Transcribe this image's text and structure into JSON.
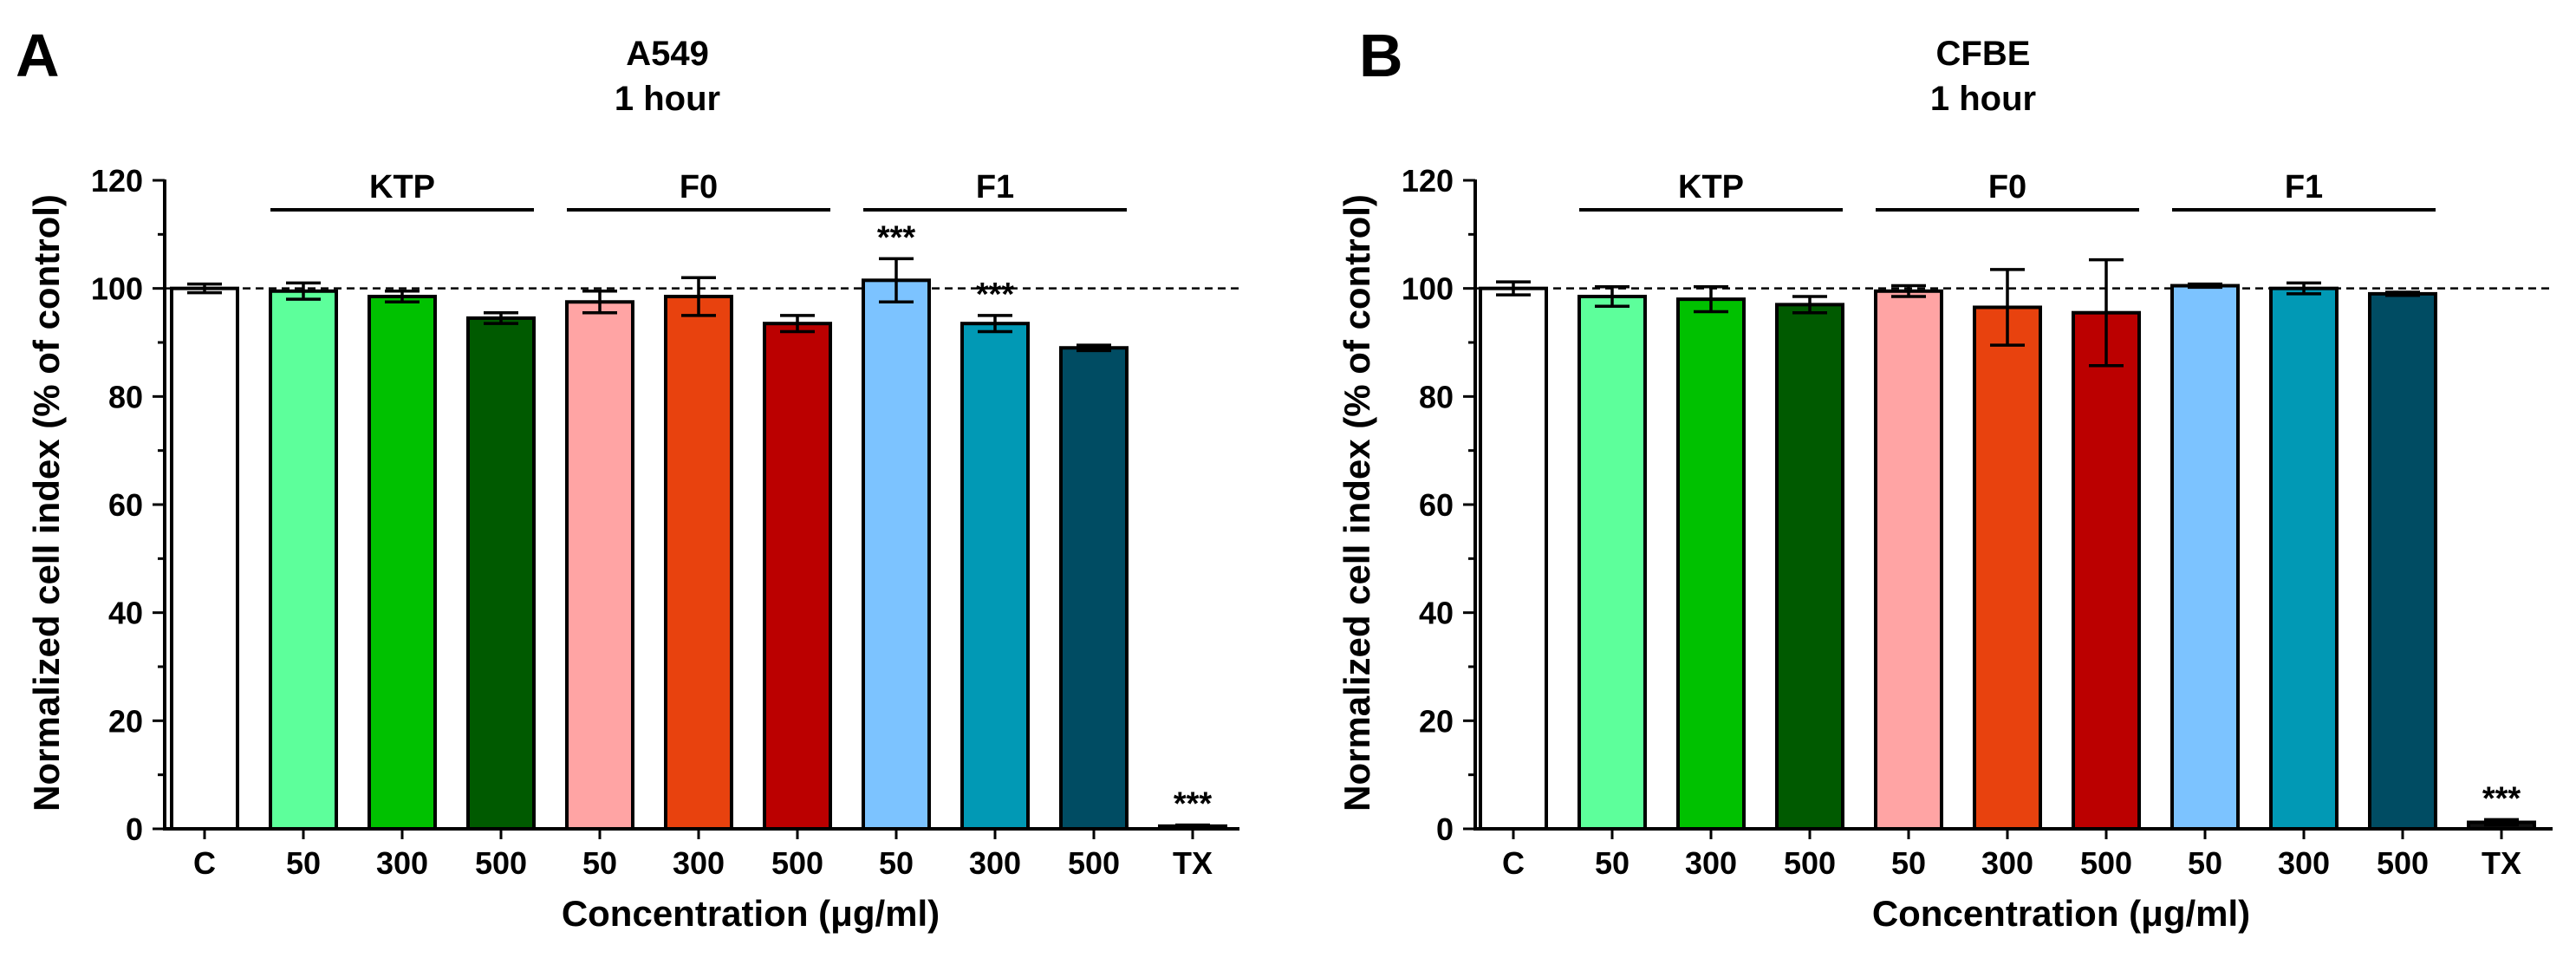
{
  "chart_data": [
    {
      "panel": "A",
      "type": "bar",
      "title": "A549",
      "subtitle": "1 hour",
      "xlabel": "Concentration (μg/ml)",
      "ylabel": "Normalized cell index (% of control)",
      "ylim": [
        0,
        120
      ],
      "yticks": [
        0,
        20,
        40,
        60,
        80,
        100,
        120
      ],
      "reference_line": 100,
      "categories": [
        "C",
        "50",
        "300",
        "500",
        "50",
        "300",
        "500",
        "50",
        "300",
        "500",
        "TX"
      ],
      "values": [
        100,
        99.5,
        98.5,
        94.5,
        97.5,
        98.5,
        93.5,
        101.5,
        93.5,
        89,
        0.5
      ],
      "errors": [
        0.8,
        1.5,
        1,
        1,
        2,
        3.5,
        1.5,
        4,
        1.5,
        0.5,
        0.2
      ],
      "significance": [
        "",
        "",
        "",
        "",
        "",
        "",
        "",
        "***",
        "***",
        "",
        "***"
      ],
      "groups": [
        {
          "label": "KTP",
          "from": 1,
          "to": 3
        },
        {
          "label": "F0",
          "from": 4,
          "to": 6
        },
        {
          "label": "F1",
          "from": 7,
          "to": 9
        }
      ]
    },
    {
      "panel": "B",
      "type": "bar",
      "title": "CFBE",
      "subtitle": "1 hour",
      "xlabel": "Concentration (μg/ml)",
      "ylabel": "Normalized cell index (% of control)",
      "ylim": [
        0,
        120
      ],
      "yticks": [
        0,
        20,
        40,
        60,
        80,
        100,
        120
      ],
      "reference_line": 100,
      "categories": [
        "C",
        "50",
        "300",
        "500",
        "50",
        "300",
        "500",
        "50",
        "300",
        "500",
        "TX"
      ],
      "values": [
        100,
        98.5,
        98,
        97,
        99.5,
        96.5,
        95.5,
        100.5,
        100,
        99,
        1.2
      ],
      "errors": [
        1.2,
        1.8,
        2.3,
        1.5,
        1,
        7,
        9.8,
        0.3,
        1,
        0.3,
        0.5
      ],
      "significance": [
        "",
        "",
        "",
        "",
        "",
        "",
        "",
        "",
        "",
        "",
        "***"
      ],
      "groups": [
        {
          "label": "KTP",
          "from": 1,
          "to": 3
        },
        {
          "label": "F0",
          "from": 4,
          "to": 6
        },
        {
          "label": "F1",
          "from": 7,
          "to": 9
        }
      ]
    }
  ],
  "bar_colors": [
    "#ffffff",
    "#5dff9b",
    "#00c100",
    "#005a00",
    "#ffa4a4",
    "#e8420e",
    "#bb0000",
    "#7cc3ff",
    "#0199b5",
    "#004c63",
    "#111111"
  ]
}
